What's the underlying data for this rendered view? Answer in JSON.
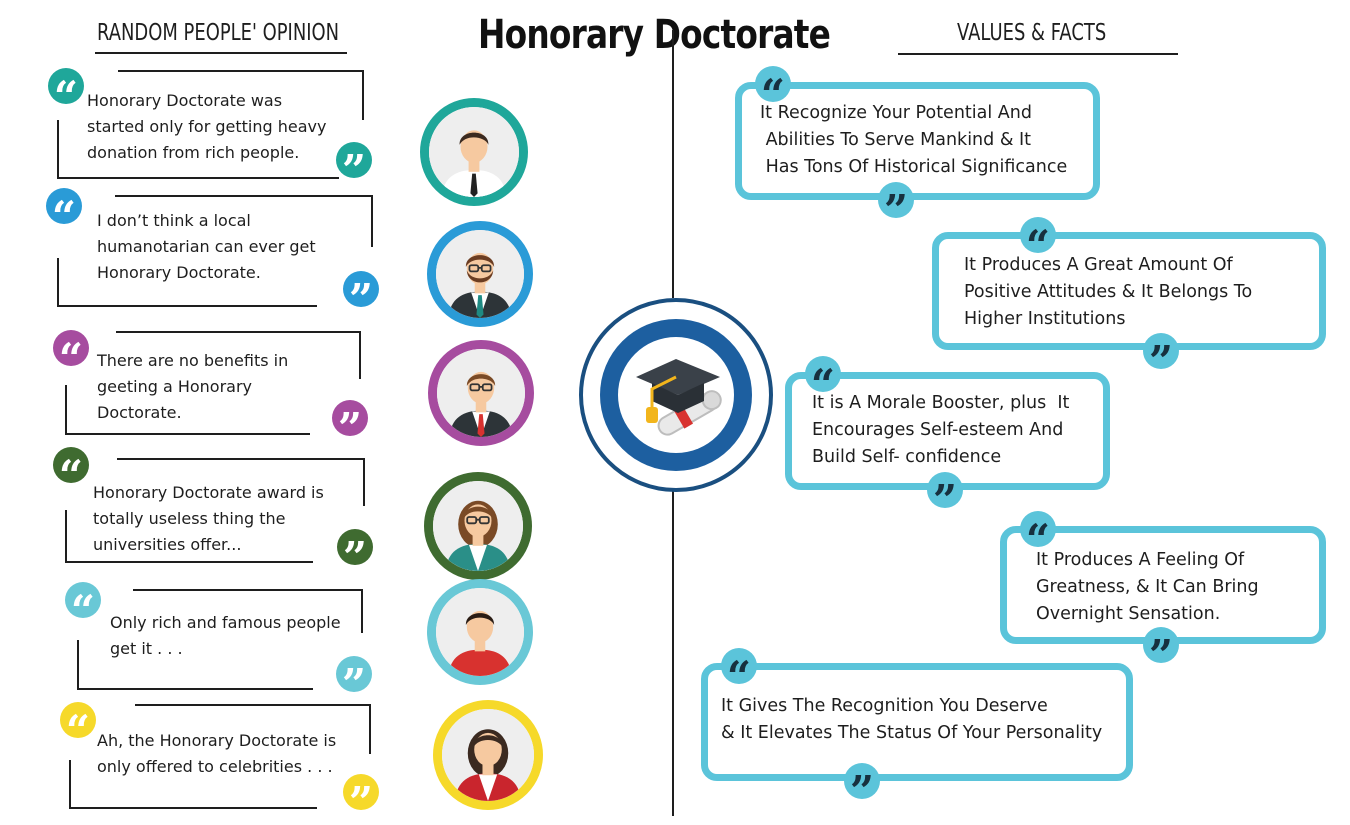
{
  "title": "Honorary Doctorate",
  "left_heading": "RANDOM PEOPLE' OPINION",
  "right_heading": "VALUES & FACTS",
  "opinions": [
    {
      "lines": [
        "Honorary Doctorate was",
        "started only for getting heavy",
        "donation from rich people."
      ],
      "color": "#1fa79a",
      "avatar": "man-in-shirt-avatar"
    },
    {
      "lines": [
        "I don’t think a local",
        "humanotarian can ever get",
        "Honorary Doctorate."
      ],
      "color": "#2a9bd7",
      "avatar": "bearded-man-glasses-avatar"
    },
    {
      "lines": [
        "There are no benefits in",
        "geeting a Honorary",
        "Doctorate."
      ],
      "color": "#a64c9f",
      "avatar": "man-in-suit-glasses-avatar"
    },
    {
      "lines": [
        "Honorary Doctorate award is",
        "totally useless thing the",
        "universities offer..."
      ],
      "color": "#3f6b30",
      "avatar": "woman-with-glasses-avatar"
    },
    {
      "lines": [
        "Only rich and famous people",
        "get it . . ."
      ],
      "color": "#69c8d6",
      "avatar": "young-man-avatar"
    },
    {
      "lines": [
        "Ah, the Honorary Doctorate is",
        "only offered to celebrities . . ."
      ],
      "color": "#f6d92a",
      "avatar": "woman-in-blazer-avatar"
    }
  ],
  "facts": [
    {
      "lines": [
        "It Recognize Your Potential And",
        " Abilities To Serve Mankind & It",
        " Has Tons Of Historical Significance"
      ]
    },
    {
      "lines": [
        "It Produces A Great Amount Of",
        "Positive Attitudes & It Belongs To",
        "Higher Institutions"
      ]
    },
    {
      "lines": [
        "It is A Morale Booster, plus  It",
        "Encourages Self-esteem And",
        "Build Self- confidence"
      ]
    },
    {
      "lines": [
        "It Produces A Feeling Of",
        "Greatness, & It Can Bring",
        "Overnight Sensation."
      ]
    },
    {
      "lines": [
        "It Gives The Recognition You Deserve",
        "& It Elevates The Status Of Your Personality"
      ]
    }
  ],
  "colors": {
    "fact_accent": "#5bc4da",
    "center_ring": "#1a4f80",
    "center_inner": "#1d5fa0"
  },
  "center_icon": "graduation-cap-diploma-icon"
}
